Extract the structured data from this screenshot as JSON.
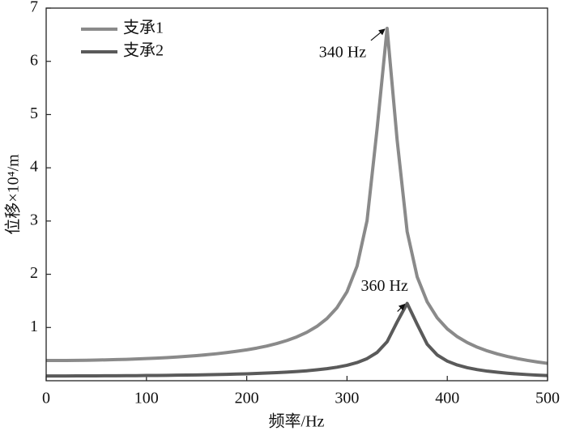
{
  "chart_data": {
    "type": "line",
    "xlabel": "频率/Hz",
    "ylabel": "位移×10⁴/m",
    "xlim": [
      0,
      500
    ],
    "ylim": [
      0,
      7
    ],
    "xticks": [
      0,
      100,
      200,
      300,
      400,
      500
    ],
    "yticks": [
      1,
      2,
      3,
      4,
      5,
      6,
      7
    ],
    "legend": "upper-left",
    "x": [
      0,
      10,
      20,
      30,
      40,
      50,
      60,
      70,
      80,
      90,
      100,
      110,
      120,
      130,
      140,
      150,
      160,
      170,
      180,
      190,
      200,
      210,
      220,
      230,
      240,
      250,
      260,
      270,
      280,
      290,
      300,
      310,
      320,
      330,
      340,
      350,
      360,
      370,
      380,
      390,
      400,
      410,
      420,
      430,
      440,
      450,
      460,
      470,
      480,
      490,
      500
    ],
    "series": [
      {
        "name": "支承1",
        "color": "#8a8a8a",
        "values": [
          0.38,
          0.38,
          0.381,
          0.383,
          0.385,
          0.388,
          0.392,
          0.397,
          0.402,
          0.409,
          0.416,
          0.424,
          0.434,
          0.445,
          0.458,
          0.472,
          0.488,
          0.507,
          0.528,
          0.553,
          0.58,
          0.613,
          0.652,
          0.699,
          0.755,
          0.824,
          0.91,
          1.021,
          1.168,
          1.372,
          1.672,
          2.152,
          3.009,
          4.73,
          6.62,
          4.52,
          2.8,
          1.95,
          1.48,
          1.18,
          0.974,
          0.827,
          0.716,
          0.629,
          0.56,
          0.503,
          0.456,
          0.416,
          0.381,
          0.352,
          0.326
        ]
      },
      {
        "name": "支承2",
        "color": "#5a5a5a",
        "values": [
          0.09,
          0.09,
          0.09,
          0.091,
          0.091,
          0.092,
          0.093,
          0.094,
          0.095,
          0.096,
          0.098,
          0.099,
          0.101,
          0.104,
          0.106,
          0.109,
          0.112,
          0.116,
          0.12,
          0.125,
          0.13,
          0.136,
          0.144,
          0.152,
          0.162,
          0.173,
          0.187,
          0.205,
          0.226,
          0.254,
          0.29,
          0.341,
          0.415,
          0.531,
          0.732,
          1.104,
          1.452,
          1.059,
          0.684,
          0.483,
          0.368,
          0.295,
          0.244,
          0.208,
          0.18,
          0.159,
          0.141,
          0.127,
          0.115,
          0.105,
          0.097
        ]
      }
    ],
    "annotations": [
      {
        "text": "340 Hz",
        "x": 340,
        "y": 6.62
      },
      {
        "text": "360 Hz",
        "x": 360,
        "y": 1.452
      }
    ]
  }
}
